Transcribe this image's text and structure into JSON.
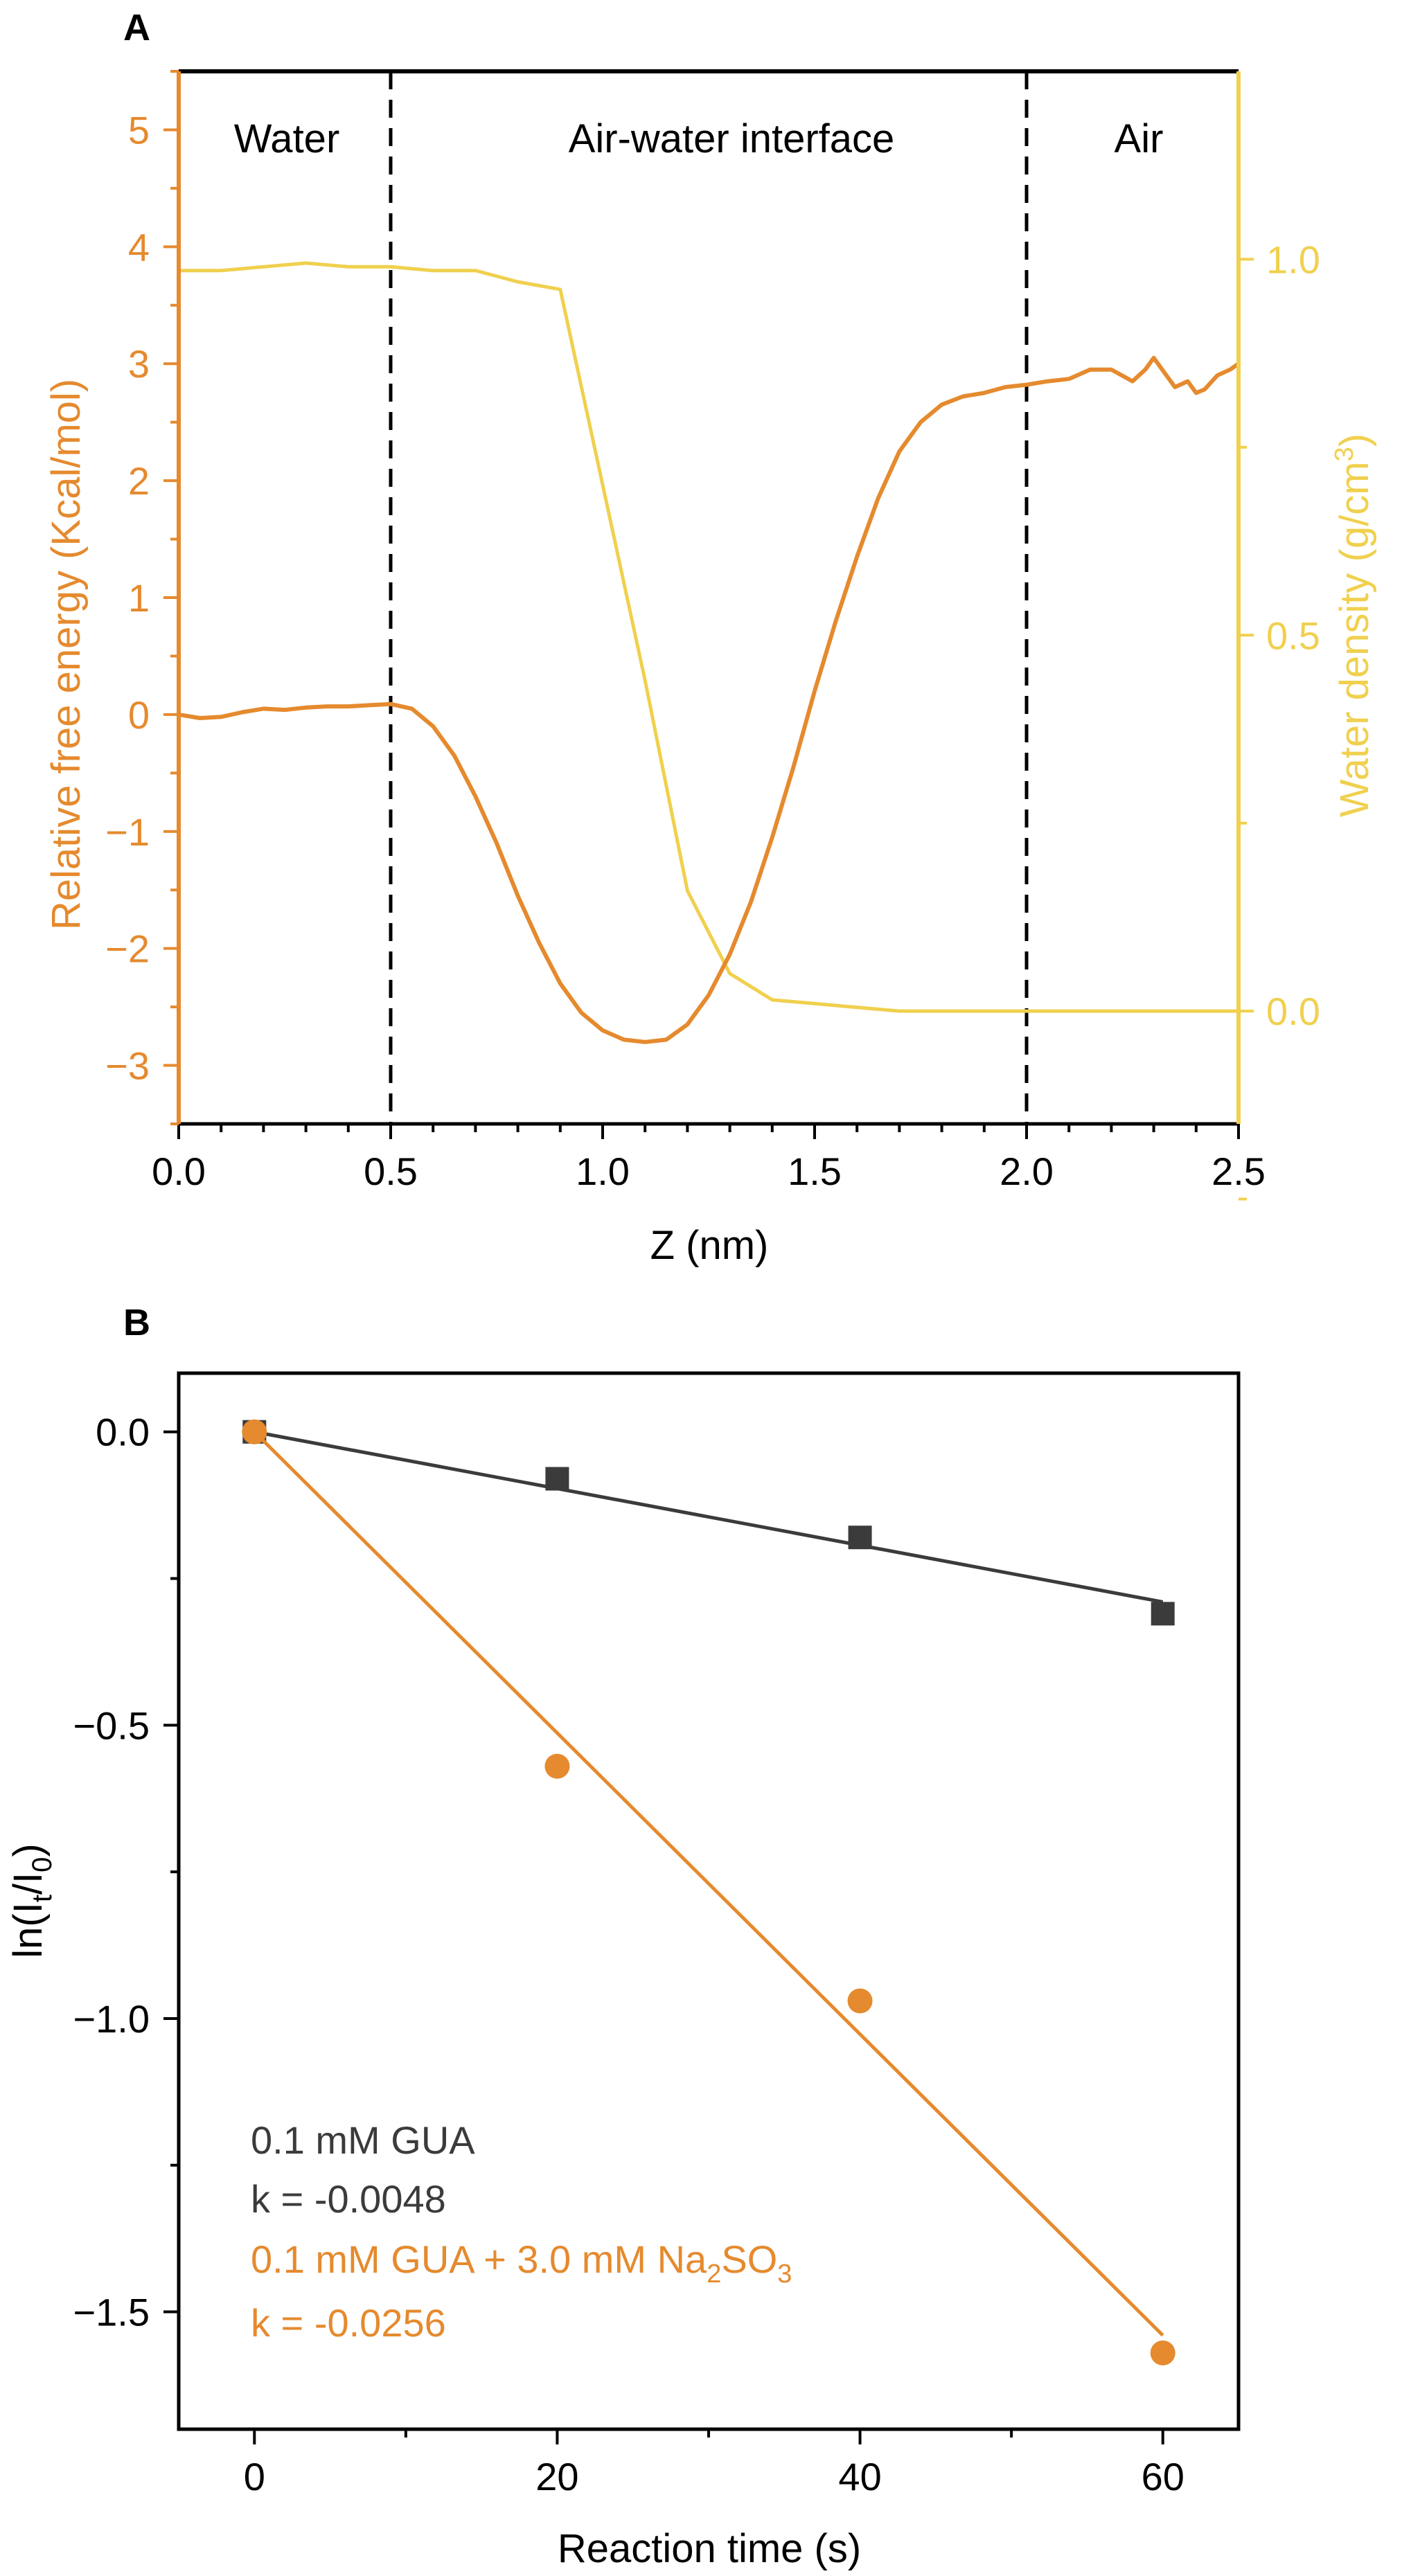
{
  "colors": {
    "orange": "#E58A2E",
    "yellow": "#F0D04E",
    "dark": "#3B3B3B",
    "black": "#000000"
  },
  "panel_a": {
    "label": "A",
    "regions": [
      "Water",
      "Air-water interface",
      "Air"
    ],
    "xlabel": "Z (nm)",
    "ylabel_left": "Relative free energy (Kcal/mol)",
    "ylabel_right_main": "Water density (g/cm",
    "ylabel_right_sup": "3",
    "ylabel_right_close": ")"
  },
  "panel_b": {
    "label": "B",
    "xlabel": "Reaction time (s)",
    "ylabel_main": "ln(I",
    "ylabel_sub1": "t",
    "ylabel_mid": "/I",
    "ylabel_sub2": "0",
    "ylabel_close": ")",
    "legend": {
      "s1_line1": "0.1 mM GUA",
      "s1_line2": "k = -0.0048",
      "s2_line1_main": "0.1 mM GUA + 3.0 mM Na",
      "s2_line1_sub1": "2",
      "s2_line1_mid": "SO",
      "s2_line1_sub2": "3",
      "s2_line2": "k = -0.0256"
    }
  },
  "chart_data": [
    {
      "type": "line",
      "panel": "A",
      "xlim": [
        0.0,
        2.5
      ],
      "ylim_left": [
        -3.5,
        5.5
      ],
      "ylim_right": [
        -0.15,
        1.25
      ],
      "x_ticks": [
        "0.0",
        "0.5",
        "1.0",
        "1.5",
        "2.0",
        "2.5"
      ],
      "y_left_ticks": [
        "−3",
        "−2",
        "−1",
        "0",
        "1",
        "2",
        "3",
        "4",
        "5"
      ],
      "y_right_ticks": [
        "0.0",
        "0.5",
        "1.0"
      ],
      "vlines": [
        0.5,
        2.0
      ],
      "series": [
        {
          "axis": "left",
          "x": [
            0.0,
            0.05,
            0.1,
            0.15,
            0.2,
            0.25,
            0.3,
            0.35,
            0.4,
            0.45,
            0.5,
            0.55,
            0.6,
            0.65,
            0.7,
            0.75,
            0.8,
            0.85,
            0.9,
            0.95,
            1.0,
            1.05,
            1.1,
            1.15,
            1.2,
            1.25,
            1.3,
            1.35,
            1.4,
            1.45,
            1.5,
            1.55,
            1.6,
            1.65,
            1.7,
            1.75,
            1.8,
            1.85,
            1.9,
            1.95,
            2.0,
            2.05,
            2.1,
            2.15,
            2.2,
            2.25,
            2.28,
            2.3,
            2.32,
            2.35,
            2.38,
            2.4,
            2.42,
            2.45,
            2.48,
            2.5
          ],
          "values": [
            0.0,
            -0.03,
            -0.02,
            0.02,
            0.05,
            0.04,
            0.06,
            0.07,
            0.07,
            0.08,
            0.09,
            0.05,
            -0.1,
            -0.35,
            -0.7,
            -1.1,
            -1.55,
            -1.95,
            -2.3,
            -2.55,
            -2.7,
            -2.78,
            -2.8,
            -2.78,
            -2.65,
            -2.4,
            -2.05,
            -1.6,
            -1.05,
            -0.45,
            0.2,
            0.8,
            1.35,
            1.85,
            2.25,
            2.5,
            2.65,
            2.72,
            2.75,
            2.8,
            2.82,
            2.85,
            2.87,
            2.95,
            2.95,
            2.85,
            2.95,
            3.05,
            2.95,
            2.8,
            2.85,
            2.75,
            2.78,
            2.9,
            2.95,
            3.0
          ]
        },
        {
          "axis": "right",
          "x": [
            0.0,
            0.1,
            0.2,
            0.3,
            0.4,
            0.5,
            0.6,
            0.7,
            0.8,
            0.9,
            1.0,
            1.1,
            1.2,
            1.3,
            1.4,
            1.5,
            1.6,
            1.7,
            1.8,
            1.9,
            2.0,
            2.1,
            2.2,
            2.3,
            2.4,
            2.5
          ],
          "values": [
            0.985,
            0.985,
            0.99,
            0.995,
            0.99,
            0.99,
            0.985,
            0.985,
            0.97,
            0.96,
            0.7,
            0.44,
            0.16,
            0.05,
            0.015,
            0.01,
            0.005,
            0.0,
            0.0,
            0.0,
            0.0,
            0.0,
            0.0,
            0.0,
            0.0,
            0.0
          ]
        }
      ]
    },
    {
      "type": "scatter",
      "panel": "B",
      "xlim": [
        -5,
        65
      ],
      "ylim": [
        -1.7,
        0.1
      ],
      "x_ticks": [
        "0",
        "20",
        "40",
        "60"
      ],
      "y_ticks": [
        "0.0",
        "-0.5",
        "-1.0",
        "-1.5"
      ],
      "y_tick_labels": [
        "0.0",
        "−0.5",
        "−1.0",
        "−1.5"
      ],
      "series": [
        {
          "name": "0.1 mM GUA",
          "marker": "square",
          "x": [
            0,
            20,
            40,
            60
          ],
          "values": [
            0.0,
            -0.08,
            -0.18,
            -0.31
          ],
          "fit": {
            "x": [
              0,
              60
            ],
            "values": [
              0.0,
              -0.29
            ]
          }
        },
        {
          "name": "0.1 mM GUA + 3.0 mM Na2SO3",
          "marker": "circle",
          "x": [
            0,
            20,
            40,
            60
          ],
          "values": [
            0.0,
            -0.57,
            -0.97,
            -1.57
          ],
          "fit": {
            "x": [
              0,
              60
            ],
            "values": [
              0.0,
              -1.54
            ]
          }
        }
      ]
    }
  ]
}
